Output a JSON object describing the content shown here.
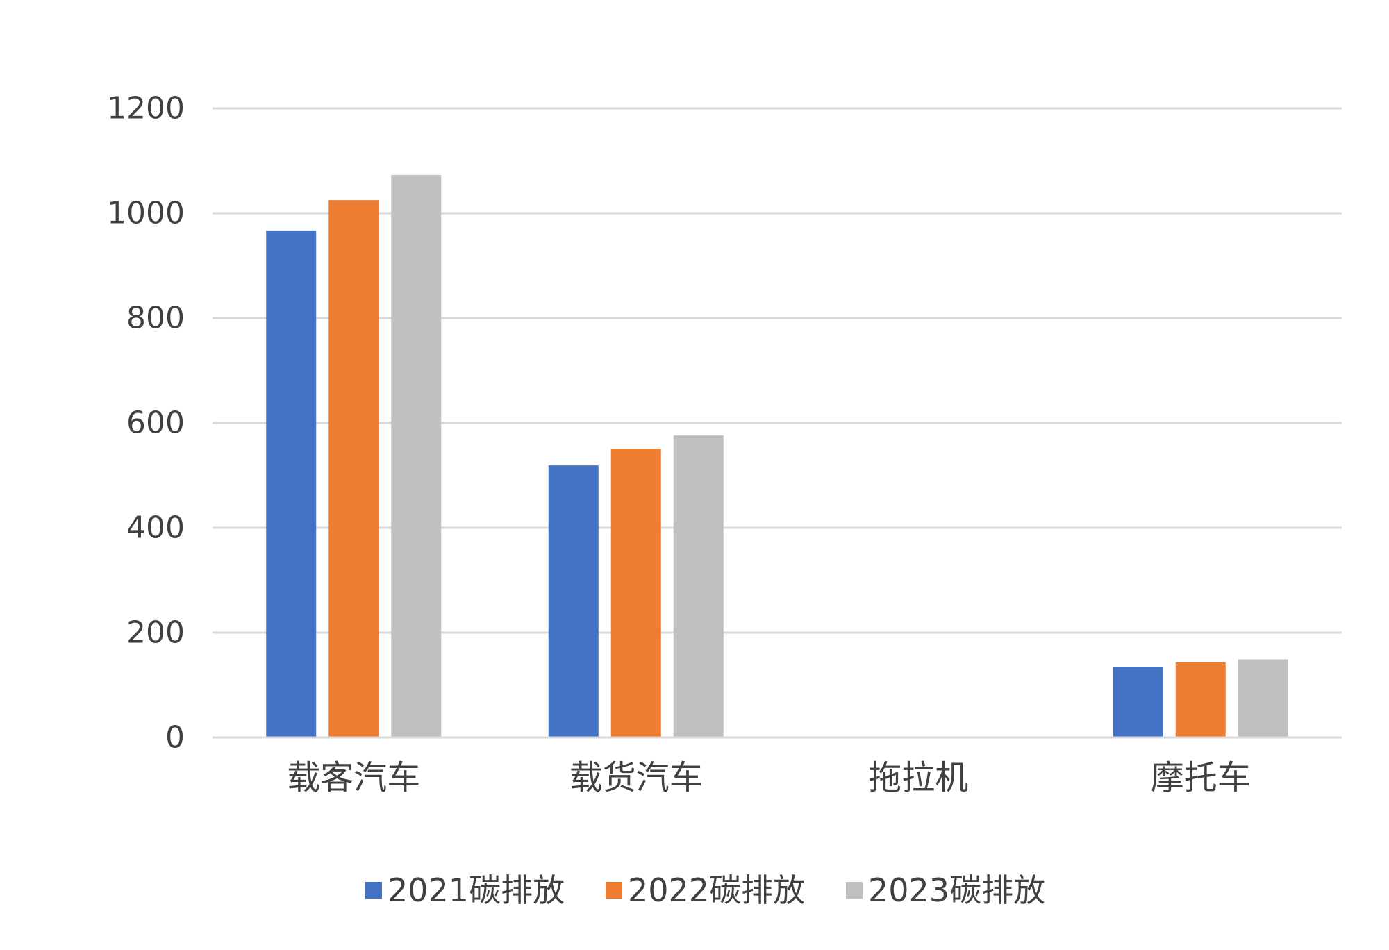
{
  "chart_data": {
    "type": "bar",
    "title": "",
    "xlabel": "",
    "ylabel": "",
    "categories": [
      "载客汽车",
      "载货汽车",
      "拖拉机",
      "摩托车"
    ],
    "series": [
      {
        "name": "2021碳排放",
        "color": "#4472C4",
        "values": [
          967,
          519,
          0,
          135
        ]
      },
      {
        "name": "2022碳排放",
        "color": "#ED7D31",
        "values": [
          1025,
          551,
          0,
          143
        ]
      },
      {
        "name": "2023碳排放",
        "color": "#BFBFBF",
        "values": [
          1073,
          576,
          0,
          149
        ]
      }
    ],
    "ylim": [
      0,
      1200
    ],
    "yticks": [
      0,
      200,
      400,
      600,
      800,
      1000,
      1200
    ],
    "yticks_text": [
      "0",
      "200",
      "400",
      "600",
      "800",
      "1000",
      "1200"
    ],
    "grid": true,
    "legend": "bottom"
  }
}
